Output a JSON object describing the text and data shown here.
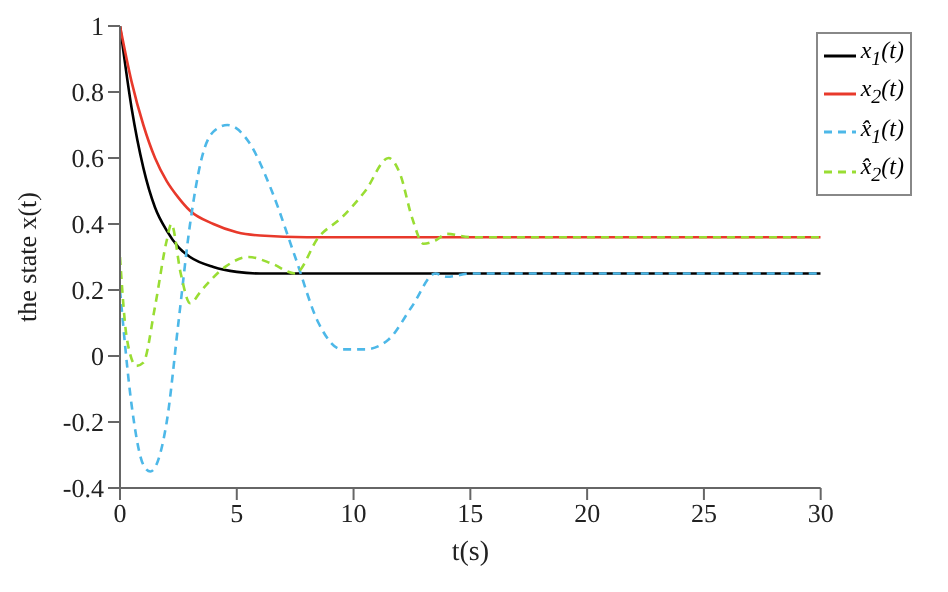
{
  "chart_data": {
    "type": "line",
    "xlabel": "t(s)",
    "ylabel": "the state x(t)",
    "xlim": [
      0,
      30
    ],
    "xticks": [
      0,
      5,
      10,
      15,
      20,
      25,
      30
    ],
    "ylim": [
      -0.4,
      1
    ],
    "yticks": [
      -0.4,
      -0.2,
      0,
      0.2,
      0.4,
      0.6,
      0.8,
      1
    ],
    "grid": false,
    "legend": "top right",
    "marker": "none",
    "series": [
      {
        "name": "x$_{1}$(t)",
        "color": "#000000",
        "line_style": "solid",
        "x": [
          0,
          0.5,
          1,
          1.5,
          2,
          2.5,
          3,
          4,
          5,
          6,
          8,
          30
        ],
        "values": [
          1,
          0.75,
          0.57,
          0.45,
          0.38,
          0.33,
          0.3,
          0.27,
          0.255,
          0.25,
          0.25,
          0.25
        ]
      },
      {
        "name": "x$_{2}$(t)",
        "color": "#e8392b",
        "line_style": "solid",
        "x": [
          0,
          0.5,
          1,
          1.5,
          2,
          2.5,
          3,
          4,
          5,
          6,
          8,
          30
        ],
        "values": [
          1,
          0.83,
          0.7,
          0.6,
          0.53,
          0.48,
          0.44,
          0.4,
          0.375,
          0.365,
          0.36,
          0.36
        ]
      },
      {
        "name": "x̂$_{1}$(t)",
        "color": "#4db8e8",
        "line_style": "dashed",
        "x": [
          0,
          0.5,
          1,
          1.3,
          2,
          2.5,
          3,
          3.5,
          4,
          4.6,
          5.5,
          6.5,
          7.5,
          8.5,
          9.5,
          10.5,
          11.5,
          12.5,
          13.5,
          14,
          15,
          30
        ],
        "values": [
          0.2,
          -0.15,
          -0.33,
          -0.35,
          -0.2,
          0.1,
          0.4,
          0.6,
          0.68,
          0.7,
          0.65,
          0.5,
          0.3,
          0.1,
          0.02,
          0.02,
          0.05,
          0.15,
          0.25,
          0.24,
          0.25,
          0.25
        ]
      },
      {
        "name": "x̂$_{2}$(t)",
        "color": "#99dd33",
        "line_style": "dashed",
        "x": [
          0,
          0.3,
          0.7,
          1,
          1.5,
          2,
          2.2,
          2.6,
          3,
          3.5,
          4.5,
          5.5,
          6.5,
          7.5,
          8.5,
          9.5,
          10.5,
          11.5,
          12,
          12.5,
          13,
          13.5,
          14,
          15,
          30
        ],
        "values": [
          0.3,
          0.05,
          -0.03,
          -0.02,
          0.15,
          0.35,
          0.4,
          0.25,
          0.16,
          0.2,
          0.27,
          0.3,
          0.28,
          0.25,
          0.36,
          0.42,
          0.5,
          0.6,
          0.55,
          0.42,
          0.34,
          0.35,
          0.37,
          0.36,
          0.36
        ]
      }
    ]
  }
}
